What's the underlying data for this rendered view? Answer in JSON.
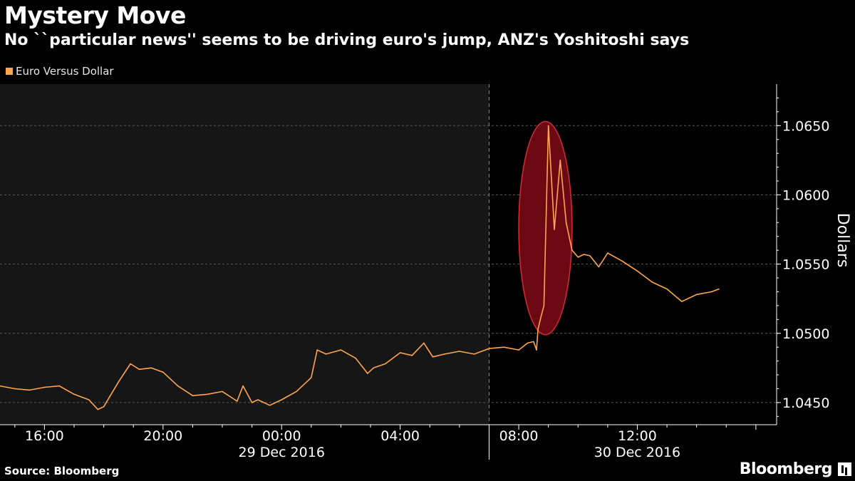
{
  "title": "Mystery Move",
  "subtitle": "No ``particular news'' seems to be driving euro's jump, ANZ's Yoshitoshi says",
  "source": "Source: Bloomberg",
  "brand": "Bloomberg",
  "colors": {
    "background": "#000000",
    "shaded_region": "#161616",
    "line": "#ffa64d",
    "highlight_fill": "#6b0a12",
    "highlight_stroke": "#d42a3a",
    "axis": "#ffffff",
    "grid": "#5a5a5a"
  },
  "chart_data": {
    "type": "line",
    "title": "Mystery Move",
    "subtitle": "No ``particular news'' seems to be driving euro's jump, ANZ's Yoshitoshi says",
    "series": [
      {
        "name": "Euro Versus Dollar",
        "x": [
          14.5,
          15.0,
          15.5,
          16.0,
          16.5,
          17.0,
          17.5,
          17.8,
          18.0,
          18.5,
          18.9,
          19.2,
          19.6,
          20.0,
          20.5,
          21.0,
          21.5,
          22.0,
          22.5,
          22.7,
          23.0,
          23.2,
          23.6,
          24.0,
          24.5,
          25.0,
          25.2,
          25.5,
          26.0,
          26.5,
          26.9,
          27.1,
          27.5,
          28.0,
          28.4,
          28.8,
          29.1,
          29.5,
          30.0,
          30.5,
          31.0,
          31.5,
          32.0,
          32.3,
          32.5,
          32.6,
          32.65,
          32.75,
          32.85,
          33.0,
          33.2,
          33.4,
          33.6,
          33.8,
          34.0,
          34.2,
          34.4,
          34.7,
          35.0,
          35.5,
          36.0,
          36.5,
          37.0,
          37.5,
          38.0,
          38.5,
          38.75
        ],
        "y": [
          1.0462,
          1.046,
          1.0459,
          1.0461,
          1.0462,
          1.0456,
          1.0452,
          1.0445,
          1.0447,
          1.0465,
          1.0478,
          1.0474,
          1.0475,
          1.0472,
          1.0462,
          1.0455,
          1.0456,
          1.0458,
          1.0451,
          1.0462,
          1.045,
          1.0452,
          1.0448,
          1.0452,
          1.0458,
          1.0468,
          1.0488,
          1.0485,
          1.0488,
          1.0482,
          1.0471,
          1.0475,
          1.0478,
          1.0486,
          1.0484,
          1.0493,
          1.0483,
          1.0485,
          1.0487,
          1.0485,
          1.0489,
          1.049,
          1.0488,
          1.0493,
          1.0494,
          1.0488,
          1.0503,
          1.0512,
          1.052,
          1.065,
          1.0575,
          1.0625,
          1.058,
          1.056,
          1.0555,
          1.0557,
          1.0556,
          1.0548,
          1.0558,
          1.0552,
          1.0545,
          1.0537,
          1.0532,
          1.0523,
          1.0528,
          1.053,
          1.0532
        ]
      }
    ],
    "ylabel": "Dollars",
    "xlabel": "",
    "xlim": [
      14.5,
      40.7
    ],
    "ylim": [
      1.0434,
      1.068
    ],
    "yticks": [
      1.045,
      1.05,
      1.055,
      1.06,
      1.065
    ],
    "ytick_labels": [
      "1.0450",
      "1.0500",
      "1.0550",
      "1.0600",
      "1.0650"
    ],
    "xticks": [
      16,
      20,
      24,
      28,
      32,
      36
    ],
    "xtick_labels": [
      "16:00",
      "20:00",
      "00:00",
      "04:00",
      "08:00",
      "12:00"
    ],
    "date_labels": [
      {
        "x": 24,
        "label": "29 Dec 2016"
      },
      {
        "x": 36,
        "label": "30 Dec 2016"
      }
    ],
    "date_divider_x": 31.0,
    "shaded_range": [
      14.5,
      31.0
    ],
    "highlight_ellipse": {
      "x_center": 32.9,
      "y_center": 1.0576,
      "x_radius": 0.9,
      "y_radius": 0.0077
    },
    "grid": true,
    "legend_position": "top-left",
    "axis_position": "right"
  }
}
